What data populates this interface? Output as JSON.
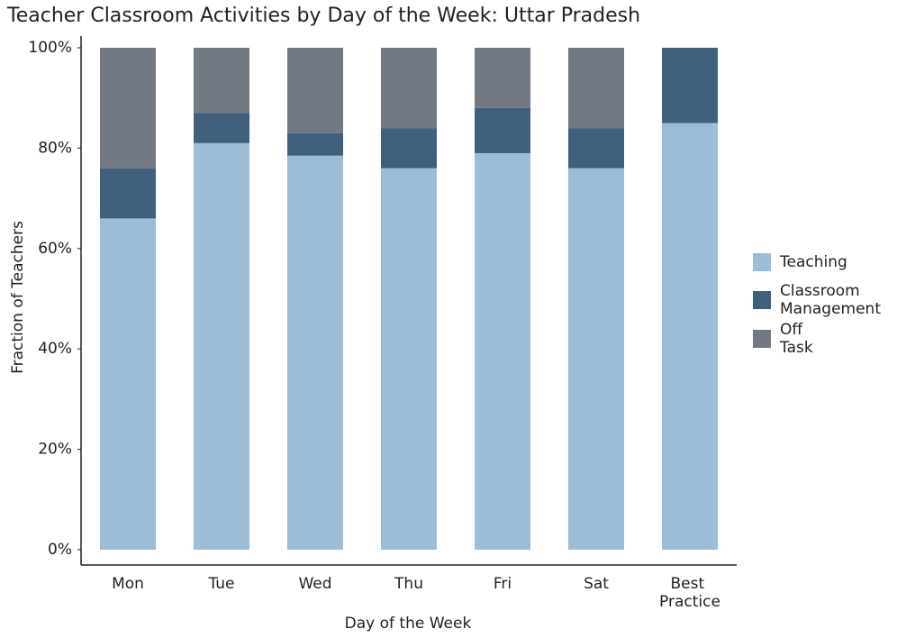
{
  "chart_data": {
    "type": "stacked_bar",
    "title": "Teacher Classroom Activities by Day of the Week: Uttar Pradesh",
    "x_label": "Day of the Week",
    "y_label": "Fraction of Teachers",
    "categories": [
      "Mon",
      "Tue",
      "Wed",
      "Thu",
      "Fri",
      "Sat",
      "Best Practice"
    ],
    "series": [
      {
        "name": "Teaching",
        "color": "#9dbcd6",
        "values": [
          66,
          81,
          78.5,
          76,
          79,
          76,
          85
        ]
      },
      {
        "name": "Classroom Management",
        "color": "#3f5f7c",
        "values": [
          10,
          6,
          4.5,
          8,
          9,
          8,
          15
        ]
      },
      {
        "name": "Off Task",
        "color": "#727983",
        "values": [
          24,
          13,
          17,
          16,
          12,
          16,
          0
        ]
      }
    ],
    "ylim": [
      0,
      100
    ],
    "yticks": [
      {
        "value": 0,
        "label": "0%"
      },
      {
        "value": 20,
        "label": "20%"
      },
      {
        "value": 40,
        "label": "40%"
      },
      {
        "value": 60,
        "label": "60%"
      },
      {
        "value": 80,
        "label": "80%"
      },
      {
        "value": 100,
        "label": "100%"
      }
    ],
    "legend": "right"
  }
}
